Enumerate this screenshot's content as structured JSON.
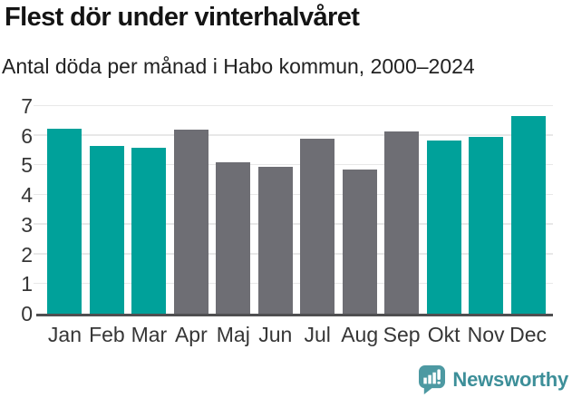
{
  "header": {
    "title": "Flest dör under vinterhalvåret",
    "subtitle": "Antal döda per månad i Habo kommun, 2000–2024"
  },
  "footer": {
    "brand": "Newsworthy",
    "logo_icon": "newsworthy-speech-bubble-barchart-icon"
  },
  "colors": {
    "highlight": "#00a19a",
    "muted": "#6e6e74",
    "gridline": "#e8e8e8",
    "axis_line": "#4f4f51",
    "brand": "#3d8f99"
  },
  "chart_data": {
    "type": "bar",
    "title": "Flest dör under vinterhalvåret",
    "subtitle": "Antal döda per månad i Habo kommun, 2000–2024",
    "categories": [
      "Jan",
      "Feb",
      "Mar",
      "Apr",
      "Maj",
      "Jun",
      "Jul",
      "Aug",
      "Sep",
      "Okt",
      "Nov",
      "Dec"
    ],
    "values": [
      6.25,
      5.65,
      5.6,
      6.2,
      5.1,
      4.95,
      5.9,
      4.85,
      6.15,
      5.85,
      5.95,
      6.65
    ],
    "bar_colors": [
      "highlight",
      "highlight",
      "highlight",
      "muted",
      "muted",
      "muted",
      "muted",
      "muted",
      "muted",
      "highlight",
      "highlight",
      "highlight"
    ],
    "xlabel": "",
    "ylabel": "",
    "ylim": [
      0,
      7
    ],
    "yticks": [
      0,
      1,
      2,
      3,
      4,
      5,
      6,
      7
    ],
    "grid": "horizontal",
    "legend": "none"
  }
}
